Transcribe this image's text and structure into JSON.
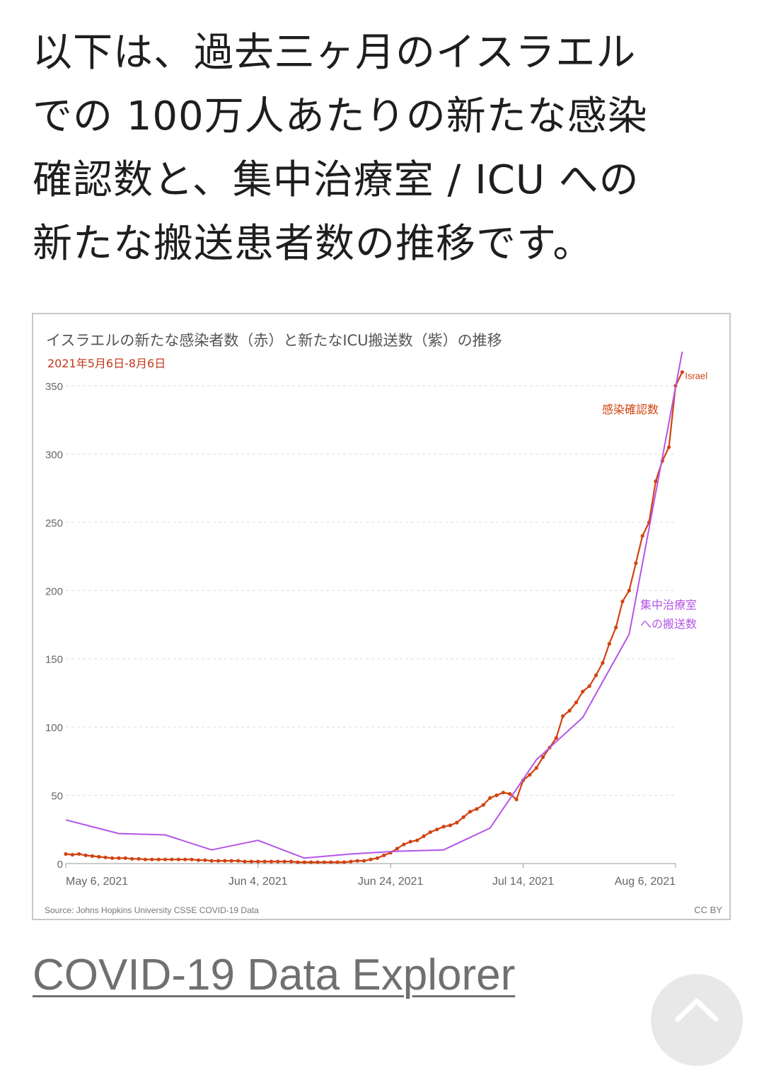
{
  "article": {
    "lines": [
      "以下は、過去三ヶ月のイスラエル",
      "での 100万人あたりの新たな感染",
      "確認数と、集中治療室 / ICU への",
      "新たな搬送患者数の推移です。"
    ]
  },
  "link": {
    "label": "COVID-19 Data Explorer"
  },
  "scroll_top_icon": "chevron-up-icon",
  "chart_data": {
    "type": "line",
    "title": "イスラエルの新たな感染者数（赤）と新たなICU搬送数（紫）の推移",
    "subtitle": "2021年5月6日-8月6日",
    "source": "Source: Johns Hopkins University CSSE COVID-19 Data",
    "license": "CC BY",
    "ylim": [
      0,
      350
    ],
    "yticks": [
      0,
      50,
      100,
      150,
      200,
      250,
      300,
      350
    ],
    "xlim": [
      "2021-05-06",
      "2021-08-06"
    ],
    "xticks": [
      {
        "date": "2021-05-06",
        "label": "May 6, 2021"
      },
      {
        "date": "2021-06-04",
        "label": "Jun 4, 2021"
      },
      {
        "date": "2021-06-24",
        "label": "Jun 24, 2021"
      },
      {
        "date": "2021-07-14",
        "label": "Jul 14, 2021"
      },
      {
        "date": "2021-08-06",
        "label": "Aug 6, 2021"
      }
    ],
    "grid": true,
    "colors": {
      "cases": "#d2420f",
      "icu": "#b455e8",
      "title": "#555555",
      "subtitle": "#c0391b"
    },
    "series": [
      {
        "id": "cases",
        "name": "Israel",
        "label": "感染確認数",
        "markers": true,
        "points": [
          [
            "2021-05-06",
            7
          ],
          [
            "2021-05-07",
            6.5
          ],
          [
            "2021-05-08",
            7
          ],
          [
            "2021-05-09",
            6
          ],
          [
            "2021-05-10",
            5.5
          ],
          [
            "2021-05-11",
            5
          ],
          [
            "2021-05-12",
            4.5
          ],
          [
            "2021-05-13",
            4
          ],
          [
            "2021-05-14",
            4
          ],
          [
            "2021-05-15",
            4
          ],
          [
            "2021-05-16",
            3.5
          ],
          [
            "2021-05-17",
            3.5
          ],
          [
            "2021-05-18",
            3
          ],
          [
            "2021-05-19",
            3
          ],
          [
            "2021-05-20",
            3
          ],
          [
            "2021-05-21",
            3
          ],
          [
            "2021-05-22",
            3
          ],
          [
            "2021-05-23",
            3
          ],
          [
            "2021-05-24",
            3
          ],
          [
            "2021-05-25",
            3
          ],
          [
            "2021-05-26",
            2.5
          ],
          [
            "2021-05-27",
            2.5
          ],
          [
            "2021-05-28",
            2
          ],
          [
            "2021-05-29",
            2
          ],
          [
            "2021-05-30",
            2
          ],
          [
            "2021-05-31",
            2
          ],
          [
            "2021-06-01",
            2
          ],
          [
            "2021-06-02",
            1.5
          ],
          [
            "2021-06-03",
            1.5
          ],
          [
            "2021-06-04",
            1.5
          ],
          [
            "2021-06-05",
            1.5
          ],
          [
            "2021-06-06",
            1.5
          ],
          [
            "2021-06-07",
            1.5
          ],
          [
            "2021-06-08",
            1.5
          ],
          [
            "2021-06-09",
            1.5
          ],
          [
            "2021-06-10",
            1
          ],
          [
            "2021-06-11",
            1
          ],
          [
            "2021-06-12",
            1
          ],
          [
            "2021-06-13",
            1
          ],
          [
            "2021-06-14",
            1
          ],
          [
            "2021-06-15",
            1
          ],
          [
            "2021-06-16",
            1
          ],
          [
            "2021-06-17",
            1
          ],
          [
            "2021-06-18",
            1.5
          ],
          [
            "2021-06-19",
            2
          ],
          [
            "2021-06-20",
            2
          ],
          [
            "2021-06-21",
            3
          ],
          [
            "2021-06-22",
            4
          ],
          [
            "2021-06-23",
            6
          ],
          [
            "2021-06-24",
            8
          ],
          [
            "2021-06-25",
            11
          ],
          [
            "2021-06-26",
            14
          ],
          [
            "2021-06-27",
            16
          ],
          [
            "2021-06-28",
            17
          ],
          [
            "2021-06-29",
            20
          ],
          [
            "2021-06-30",
            23
          ],
          [
            "2021-07-01",
            25
          ],
          [
            "2021-07-02",
            27
          ],
          [
            "2021-07-03",
            28
          ],
          [
            "2021-07-04",
            30
          ],
          [
            "2021-07-05",
            34
          ],
          [
            "2021-07-06",
            38
          ],
          [
            "2021-07-07",
            40
          ],
          [
            "2021-07-08",
            43
          ],
          [
            "2021-07-09",
            48
          ],
          [
            "2021-07-10",
            50
          ],
          [
            "2021-07-11",
            52
          ],
          [
            "2021-07-12",
            51
          ],
          [
            "2021-07-13",
            47
          ],
          [
            "2021-07-14",
            61
          ],
          [
            "2021-07-15",
            65
          ],
          [
            "2021-07-16",
            70
          ],
          [
            "2021-07-17",
            78
          ],
          [
            "2021-07-18",
            85
          ],
          [
            "2021-07-19",
            92
          ],
          [
            "2021-07-20",
            108
          ],
          [
            "2021-07-21",
            112
          ],
          [
            "2021-07-22",
            118
          ],
          [
            "2021-07-23",
            126
          ],
          [
            "2021-07-24",
            130
          ],
          [
            "2021-07-25",
            138
          ],
          [
            "2021-07-26",
            147
          ],
          [
            "2021-07-27",
            161
          ],
          [
            "2021-07-28",
            173
          ],
          [
            "2021-07-29",
            192
          ],
          [
            "2021-07-30",
            200
          ],
          [
            "2021-07-31",
            220
          ],
          [
            "2021-08-01",
            240
          ],
          [
            "2021-08-02",
            250
          ],
          [
            "2021-08-03",
            280
          ],
          [
            "2021-08-04",
            295
          ],
          [
            "2021-08-05",
            305
          ],
          [
            "2021-08-06",
            350
          ],
          [
            "2021-08-07",
            360
          ]
        ]
      },
      {
        "id": "icu",
        "name": "",
        "label": "集中治療室\nへの搬送数",
        "markers": false,
        "points": [
          [
            "2021-05-06",
            32
          ],
          [
            "2021-05-14",
            22
          ],
          [
            "2021-05-21",
            21
          ],
          [
            "2021-05-28",
            10
          ],
          [
            "2021-06-04",
            17
          ],
          [
            "2021-06-11",
            4
          ],
          [
            "2021-06-18",
            7
          ],
          [
            "2021-06-25",
            9
          ],
          [
            "2021-07-02",
            10
          ],
          [
            "2021-07-09",
            26
          ],
          [
            "2021-07-16",
            76
          ],
          [
            "2021-07-23",
            107
          ],
          [
            "2021-07-30",
            168
          ],
          [
            "2021-08-07",
            375
          ]
        ]
      }
    ]
  }
}
